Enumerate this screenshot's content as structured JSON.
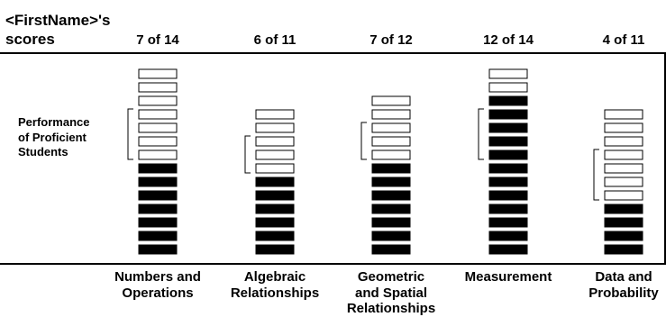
{
  "header": {
    "line1": "<FirstName>'s",
    "line2": "scores"
  },
  "performance_label": {
    "line1": "Performance",
    "line2": "of Proficient",
    "line3": "Students"
  },
  "colors": {
    "filled": "#000000",
    "empty": "#ffffff",
    "stroke": "#000000"
  },
  "chart_data": {
    "type": "bar",
    "categories": [
      "Numbers and Operations",
      "Algebraic Relationships",
      "Geometric and Spatial Relationships",
      "Measurement",
      "Data and Probability"
    ],
    "category_label_lines": [
      [
        "Numbers and",
        "Operations"
      ],
      [
        "Algebraic",
        "Relationships"
      ],
      [
        "Geometric",
        "and Spatial",
        "Relationships"
      ],
      [
        "Measurement"
      ],
      [
        "Data and",
        "Probability"
      ]
    ],
    "score_labels": [
      "7 of 14",
      "6 of 11",
      "7 of 12",
      "12 of 14",
      "4 of 11"
    ],
    "series": [
      {
        "values": [
          7,
          6,
          7,
          12,
          4
        ]
      }
    ],
    "totals": [
      14,
      11,
      12,
      14,
      11
    ],
    "proficient_range": [
      [
        8,
        11
      ],
      [
        7,
        9
      ],
      [
        8,
        10
      ],
      [
        8,
        11
      ],
      [
        5,
        8
      ]
    ]
  }
}
